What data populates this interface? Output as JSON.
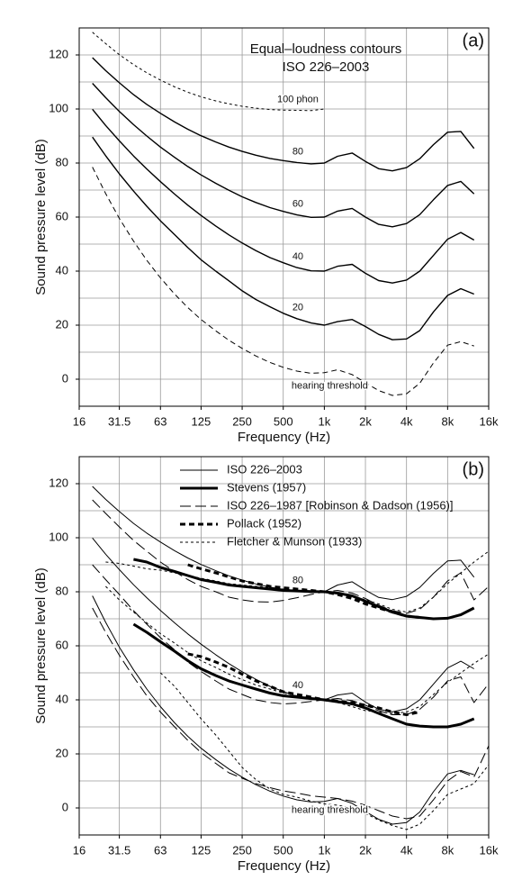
{
  "chart_data": [
    {
      "type": "line",
      "panel_label": "(a)",
      "title": "Equal–loudness contours",
      "subtitle": "ISO 226–2003",
      "x_label": "Frequency (Hz)",
      "y_label": "Sound pressure level (dB)",
      "log_x": true,
      "grid": true,
      "legend": false,
      "xlim": [
        16,
        16000
      ],
      "ylim": [
        -10,
        130
      ],
      "xticks": [
        16,
        31.5,
        63,
        125,
        250,
        500,
        {
          "value": 1000,
          "label": "1k"
        },
        {
          "value": 2000,
          "label": "2k"
        },
        {
          "value": 4000,
          "label": "4k"
        },
        {
          "value": 8000,
          "label": "8k"
        },
        {
          "value": 16000,
          "label": "16k"
        }
      ],
      "yticks": [
        0,
        20,
        40,
        60,
        80,
        100,
        120
      ],
      "ygrid": [
        -10,
        10,
        30,
        50,
        70,
        90,
        110,
        130
      ],
      "x": [
        20,
        25,
        31.5,
        40,
        50,
        63,
        80,
        100,
        125,
        160,
        200,
        250,
        315,
        400,
        500,
        630,
        800,
        1000,
        1250,
        1600,
        2000,
        2500,
        3150,
        4000,
        5000,
        6300,
        8000,
        10000,
        12500
      ],
      "series": [
        {
          "name": "100 phon",
          "color": "#000000",
          "dash": "3,3",
          "width": 1,
          "values": [
            128.4,
            124.2,
            120.1,
            116.4,
            113.4,
            110.7,
            108.2,
            106.2,
            104.5,
            103.0,
            101.9,
            101.0,
            100.3,
            99.8,
            99.6,
            99.5,
            99.4,
            100.0,
            null,
            null,
            null,
            null,
            null,
            null,
            null,
            null,
            null,
            null,
            null
          ]
        },
        {
          "name": "80",
          "color": "#000000",
          "dash": "none",
          "width": 1.4,
          "values": [
            119.0,
            114.2,
            109.7,
            105.3,
            101.7,
            98.4,
            95.2,
            92.5,
            90.1,
            87.8,
            85.9,
            84.3,
            82.9,
            81.7,
            80.9,
            80.2,
            79.7,
            80.0,
            82.5,
            83.7,
            80.6,
            77.9,
            77.1,
            78.3,
            81.6,
            86.8,
            91.4,
            91.7,
            85.4
          ]
        },
        {
          "name": "60",
          "color": "#000000",
          "dash": "none",
          "width": 1.4,
          "values": [
            109.5,
            104.2,
            99.1,
            94.2,
            90.0,
            85.9,
            82.1,
            78.7,
            75.6,
            72.5,
            69.9,
            67.5,
            65.4,
            63.5,
            62.1,
            60.8,
            59.9,
            60.0,
            62.2,
            63.2,
            60.0,
            57.3,
            56.4,
            57.6,
            60.9,
            66.4,
            71.7,
            73.2,
            68.6
          ]
        },
        {
          "name": "40",
          "color": "#000000",
          "dash": "none",
          "width": 1.4,
          "values": [
            99.9,
            93.9,
            88.2,
            82.6,
            77.8,
            73.1,
            68.5,
            64.4,
            60.6,
            56.7,
            53.4,
            50.4,
            47.6,
            45.0,
            43.1,
            41.3,
            40.1,
            40.0,
            41.8,
            42.5,
            39.2,
            36.5,
            35.6,
            36.7,
            40.0,
            45.8,
            51.8,
            54.3,
            51.5
          ]
        },
        {
          "name": "20",
          "color": "#000000",
          "dash": "none",
          "width": 1.4,
          "values": [
            89.6,
            82.7,
            76.0,
            69.6,
            64.0,
            58.6,
            53.5,
            48.7,
            44.2,
            40.0,
            36.4,
            32.7,
            29.5,
            26.8,
            24.4,
            22.4,
            20.8,
            20.0,
            21.3,
            22.1,
            19.5,
            16.6,
            14.6,
            14.9,
            18.0,
            24.9,
            31.0,
            33.5,
            31.5
          ]
        },
        {
          "name": "hearing threshold",
          "color": "#000000",
          "dash": "6,4",
          "width": 1,
          "values": [
            78.5,
            68.7,
            59.5,
            51.1,
            44.0,
            37.5,
            31.5,
            26.5,
            22.1,
            17.9,
            14.4,
            11.4,
            8.6,
            6.2,
            4.4,
            3.0,
            2.2,
            2.4,
            3.5,
            1.7,
            -1.3,
            -4.2,
            -6.0,
            -5.4,
            -1.5,
            6.0,
            12.6,
            13.9,
            12.3
          ]
        }
      ]
    },
    {
      "type": "multiline",
      "panel_label": "(b)",
      "x_label": "Frequency (Hz)",
      "y_label": "Sound pressure level (dB)",
      "log_x": true,
      "grid": true,
      "legend": "upper left",
      "xlim": [
        16,
        16000
      ],
      "ylim": [
        -10,
        130
      ],
      "xticks": [
        16,
        31.5,
        63,
        125,
        250,
        500,
        {
          "value": 1000,
          "label": "1k"
        },
        {
          "value": 2000,
          "label": "2k"
        },
        {
          "value": 4000,
          "label": "4k"
        },
        {
          "value": 8000,
          "label": "8k"
        },
        {
          "value": 16000,
          "label": "16k"
        }
      ],
      "yticks": [
        0,
        20,
        40,
        60,
        80,
        100,
        120
      ],
      "ygrid": [
        -10,
        10,
        30,
        50,
        70,
        90,
        110,
        130
      ],
      "curve_labels": [
        "80",
        "40",
        "hearing threshold"
      ],
      "x": [
        20,
        25,
        31.5,
        40,
        50,
        63,
        80,
        100,
        125,
        160,
        200,
        250,
        315,
        400,
        500,
        630,
        800,
        1000,
        1250,
        1600,
        2000,
        2500,
        3150,
        4000,
        5000,
        6300,
        8000,
        10000,
        12500,
        16000
      ],
      "series": [
        {
          "name": "ISO 226–2003",
          "color": "#000000",
          "dash": "none",
          "width": 1,
          "curves": [
            [
              119.0,
              114.2,
              109.7,
              105.3,
              101.7,
              98.4,
              95.2,
              92.5,
              90.1,
              87.8,
              85.9,
              84.3,
              82.9,
              81.7,
              80.9,
              80.2,
              79.7,
              80.0,
              82.5,
              83.7,
              80.6,
              77.9,
              77.1,
              78.3,
              81.6,
              86.8,
              91.4,
              91.7,
              85.4,
              null
            ],
            [
              99.9,
              93.9,
              88.2,
              82.6,
              77.8,
              73.1,
              68.5,
              64.4,
              60.6,
              56.7,
              53.4,
              50.4,
              47.6,
              45.0,
              43.1,
              41.3,
              40.1,
              40.0,
              41.8,
              42.5,
              39.2,
              36.5,
              35.6,
              36.7,
              40.0,
              45.8,
              51.8,
              54.3,
              51.5,
              null
            ],
            [
              78.5,
              68.7,
              59.5,
              51.1,
              44.0,
              37.5,
              31.5,
              26.5,
              22.1,
              17.9,
              14.4,
              11.4,
              8.6,
              6.2,
              4.4,
              3.0,
              2.2,
              2.4,
              3.5,
              1.7,
              -1.3,
              -4.2,
              -6.0,
              -5.4,
              -1.5,
              6.0,
              12.6,
              13.9,
              12.3,
              null
            ]
          ]
        },
        {
          "name": "Stevens (1957)",
          "color": "#000000",
          "dash": "none",
          "width": 3,
          "curves": [
            [
              null,
              null,
              null,
              92,
              91,
              89,
              87.5,
              86,
              84.5,
              83.5,
              82.5,
              82,
              81.5,
              81,
              80.5,
              80.3,
              80.1,
              80,
              79.5,
              78.5,
              76.5,
              74.5,
              72.5,
              71,
              70.5,
              70,
              70.2,
              71.5,
              74,
              null
            ],
            [
              null,
              null,
              null,
              68,
              65,
              61.5,
              58,
              54.5,
              51.5,
              49,
              47,
              45.5,
              44,
              42.5,
              41.5,
              41,
              40.5,
              40,
              39.3,
              38.5,
              37,
              35,
              33,
              31,
              30.3,
              30,
              30,
              31,
              33,
              null
            ]
          ]
        },
        {
          "name": "ISO 226–1987 [Robinson & Dadson (1956)]",
          "color": "#000000",
          "dash": "12,5",
          "width": 1,
          "curves": [
            [
              114,
              109,
              104,
              99,
              95,
              91,
              87.5,
              84.5,
              82,
              80,
              78,
              77,
              76.3,
              76.2,
              76.8,
              77.8,
              79,
              80,
              80.5,
              79.5,
              77.5,
              75,
              73,
              72,
              73.5,
              78,
              84,
              87,
              77,
              82
            ],
            [
              90,
              84.5,
              79,
              73,
              68,
              63,
              58.5,
              54,
              50.5,
              47,
              44,
              42,
              40,
              39,
              38.5,
              38.8,
              39.4,
              40,
              40.5,
              39.7,
              38,
              36,
              34.5,
              34.5,
              36.5,
              41,
              47,
              48.5,
              39,
              46
            ],
            [
              74,
              65,
              56.5,
              48.5,
              41.5,
              35.5,
              30,
              25,
              20.5,
              16.5,
              13,
              11,
              9,
              7.5,
              6.3,
              5.5,
              4.5,
              4,
              3.5,
              2.5,
              1,
              -1,
              -3,
              -4,
              -3,
              3,
              10,
              13.5,
              11.5,
              23
            ]
          ]
        },
        {
          "name": "Pollack (1952)",
          "color": "#000000",
          "dash": "6,4",
          "width": 3,
          "curves": [
            [
              null,
              null,
              null,
              null,
              null,
              null,
              null,
              90,
              88.5,
              87,
              85.5,
              84,
              83,
              82,
              81.5,
              81,
              80.5,
              80,
              79,
              77.5,
              75.5,
              74,
              72.5,
              71,
              70.5,
              null,
              null,
              null,
              null,
              null
            ],
            [
              null,
              null,
              null,
              null,
              null,
              null,
              null,
              57,
              56,
              54,
              52,
              49.5,
              47,
              45,
              43,
              42,
              41,
              40,
              39.5,
              39,
              38,
              37,
              35.5,
              34.5,
              35.5,
              null,
              null,
              null,
              null,
              null
            ]
          ]
        },
        {
          "name": "Fletcher & Munson (1933)",
          "color": "#000000",
          "dash": "3,3",
          "width": 1,
          "curves": [
            [
              null,
              91,
              90.5,
              89.5,
              88.5,
              88,
              87,
              86,
              85,
              84,
              83,
              82.5,
              82,
              81.5,
              81,
              80.5,
              80.2,
              80,
              79.5,
              78.5,
              77,
              75.5,
              73.5,
              72.5,
              74,
              78,
              83,
              87,
              91,
              95
            ],
            [
              null,
              82,
              77,
              72.5,
              68.5,
              64.5,
              61,
              57.5,
              54.5,
              52,
              49.5,
              47.5,
              45.5,
              44,
              42.5,
              41.5,
              40.7,
              40,
              39,
              37.5,
              36,
              35.5,
              35,
              35.5,
              37.5,
              42,
              46.5,
              50,
              53.5,
              57
            ],
            [
              null,
              null,
              null,
              null,
              null,
              50,
              45,
              39,
              33,
              27,
              21,
              15,
              10.5,
              7,
              5,
              4,
              2.5,
              1.5,
              1,
              0,
              -2,
              -4.5,
              -6.5,
              -8,
              -6,
              -1,
              5,
              7,
              9,
              16
            ]
          ]
        }
      ]
    }
  ]
}
